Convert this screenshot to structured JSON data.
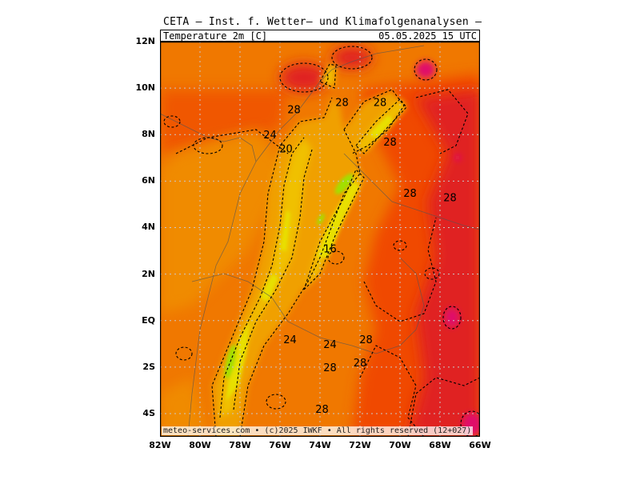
{
  "header": {
    "title": "CETA — Inst. f. Wetter— und Klimafolgenanalysen —",
    "variable": "Temperature 2m [C]",
    "datetime": "05.05.2025 15 UTC"
  },
  "footer": {
    "credit": "meteo-services.com • (c)2025 IWKF • All rights reserved (12+027)"
  },
  "axes": {
    "lat_labels": [
      "12N",
      "10N",
      "8N",
      "6N",
      "4N",
      "2N",
      "EQ",
      "2S",
      "4S"
    ],
    "lon_labels": [
      "82W",
      "80W",
      "78W",
      "76W",
      "74W",
      "72W",
      "70W",
      "68W",
      "66W"
    ],
    "lat_range": [
      -5,
      12
    ],
    "lon_range": [
      -82,
      -66
    ]
  },
  "contour_labels": [
    {
      "text": "28",
      "lon": -75.3,
      "lat": 9.1
    },
    {
      "text": "28",
      "lon": -72.9,
      "lat": 9.4
    },
    {
      "text": "28",
      "lon": -71.0,
      "lat": 9.4
    },
    {
      "text": "24",
      "lon": -76.5,
      "lat": 8.0
    },
    {
      "text": "28",
      "lon": -70.5,
      "lat": 7.7
    },
    {
      "text": "20",
      "lon": -75.7,
      "lat": 7.4
    },
    {
      "text": "28",
      "lon": -69.5,
      "lat": 5.5
    },
    {
      "text": "28",
      "lon": -67.5,
      "lat": 5.3
    },
    {
      "text": "16",
      "lon": -73.5,
      "lat": 3.1
    },
    {
      "text": "24",
      "lon": -75.5,
      "lat": -0.8
    },
    {
      "text": "24",
      "lon": -73.5,
      "lat": -1.0
    },
    {
      "text": "28",
      "lon": -71.7,
      "lat": -0.8
    },
    {
      "text": "28",
      "lon": -73.5,
      "lat": -2.0
    },
    {
      "text": "28",
      "lon": -72.0,
      "lat": -1.8
    },
    {
      "text": "28",
      "lon": -73.9,
      "lat": -3.8
    }
  ],
  "colors": {
    "background_field": "#f07800",
    "warm": "#f04800",
    "hot": "#e02020",
    "very_hot": "#e0106a",
    "mild": "#f0a000",
    "cool": "#f0c000",
    "cooler": "#e8e000",
    "coldest": "#a0e000"
  }
}
